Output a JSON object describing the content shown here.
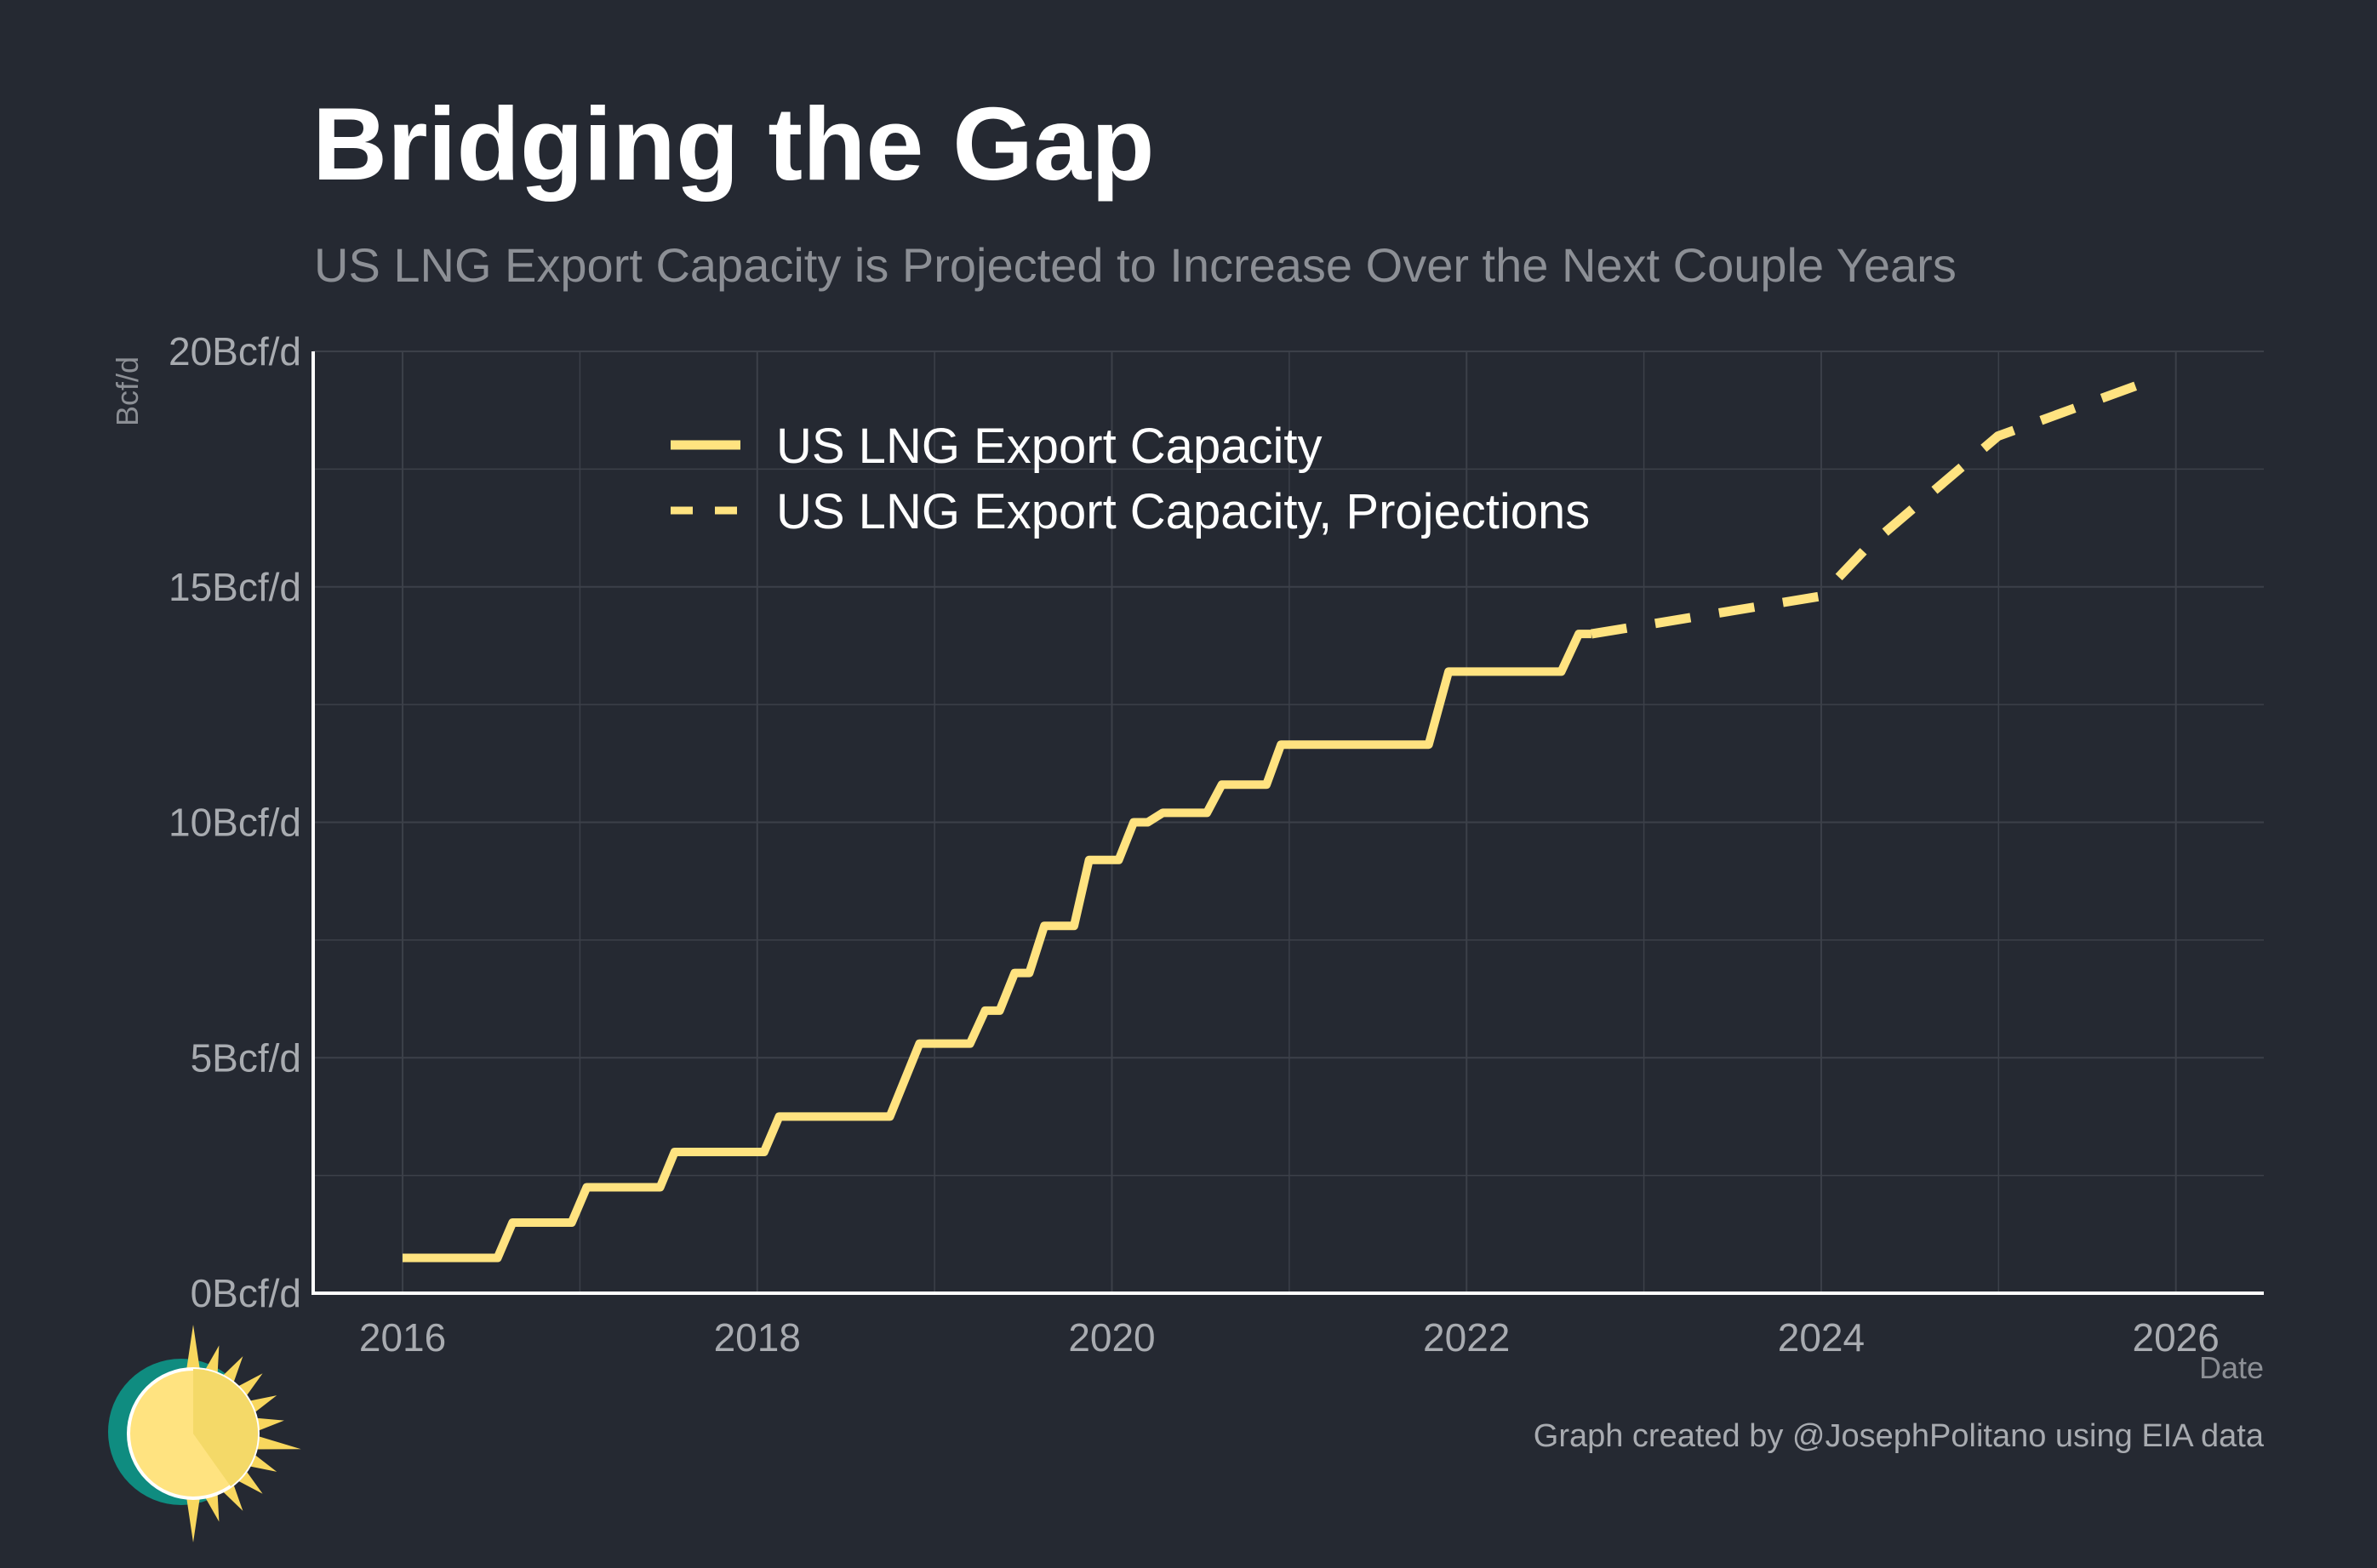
{
  "header": {
    "title": "Bridging the Gap",
    "subtitle": "US LNG Export Capacity is Projected to Increase Over the Next Couple Years"
  },
  "footer": {
    "caption": "Graph created by @JosephPolitano using EIA data"
  },
  "colors": {
    "background": "#252932",
    "line": "#ffe380",
    "grid": "#3c4049",
    "axis": "#ffffff",
    "tick_text": "#a8abb0",
    "legend_text": "#ffffff",
    "caption_text": "#a8abb0",
    "logo_teal": "#0f8c80",
    "logo_sun": "#ffe380",
    "logo_rays": "#f8d75e"
  },
  "icons": {
    "logo": "sun-logo-icon"
  },
  "chart_data": {
    "type": "line",
    "title": "Bridging the Gap",
    "subtitle": "US LNG Export Capacity is Projected to Increase Over the Next Couple Years",
    "xlabel": "Date",
    "ylabel": "Bcf/d",
    "x_type": "date",
    "xlim": [
      "2015-07-01",
      "2026-07-01"
    ],
    "ylim": [
      0,
      20
    ],
    "x_ticks": [
      "2016",
      "2018",
      "2020",
      "2022",
      "2024",
      "2026"
    ],
    "y_ticks": [
      "0Bcf/d",
      "5Bcf/d",
      "10Bcf/d",
      "15Bcf/d",
      "20Bcf/d"
    ],
    "grid": true,
    "legend_position": "top-left",
    "caption": "Graph created by @JosephPolitano using EIA data",
    "series": [
      {
        "name": "US LNG Export Capacity",
        "style": "solid",
        "color": "#ffe380",
        "points": [
          [
            "2016-01-01",
            0.75
          ],
          [
            "2016-07-15",
            0.75
          ],
          [
            "2016-08-15",
            1.5
          ],
          [
            "2016-12-15",
            1.5
          ],
          [
            "2017-01-15",
            2.25
          ],
          [
            "2017-06-15",
            2.25
          ],
          [
            "2017-07-15",
            3.0
          ],
          [
            "2018-01-15",
            3.0
          ],
          [
            "2018-02-15",
            3.75
          ],
          [
            "2018-10-01",
            3.75
          ],
          [
            "2018-12-01",
            5.3
          ],
          [
            "2019-03-15",
            5.3
          ],
          [
            "2019-04-15",
            6.0
          ],
          [
            "2019-05-15",
            6.0
          ],
          [
            "2019-06-15",
            6.8
          ],
          [
            "2019-07-15",
            6.8
          ],
          [
            "2019-08-15",
            7.8
          ],
          [
            "2019-10-15",
            7.8
          ],
          [
            "2019-11-15",
            9.2
          ],
          [
            "2020-01-15",
            9.2
          ],
          [
            "2020-02-15",
            10.0
          ],
          [
            "2020-03-15",
            10.0
          ],
          [
            "2020-04-15",
            10.2
          ],
          [
            "2020-07-15",
            10.2
          ],
          [
            "2020-08-15",
            10.8
          ],
          [
            "2020-11-15",
            10.8
          ],
          [
            "2020-12-15",
            11.65
          ],
          [
            "2021-10-15",
            11.65
          ],
          [
            "2021-11-25",
            13.2
          ],
          [
            "2022-07-15",
            13.2
          ],
          [
            "2022-08-20",
            14.0
          ],
          [
            "2022-09-15",
            14.0
          ]
        ]
      },
      {
        "name": "US LNG Export Capacity, Projections",
        "style": "dashed",
        "color": "#ffe380",
        "points": [
          [
            "2022-09-15",
            14.0
          ],
          [
            "2023-12-31",
            14.8
          ],
          [
            "2024-04-01",
            15.8
          ],
          [
            "2024-12-31",
            18.2
          ],
          [
            "2025-11-15",
            19.4
          ]
        ]
      }
    ]
  }
}
